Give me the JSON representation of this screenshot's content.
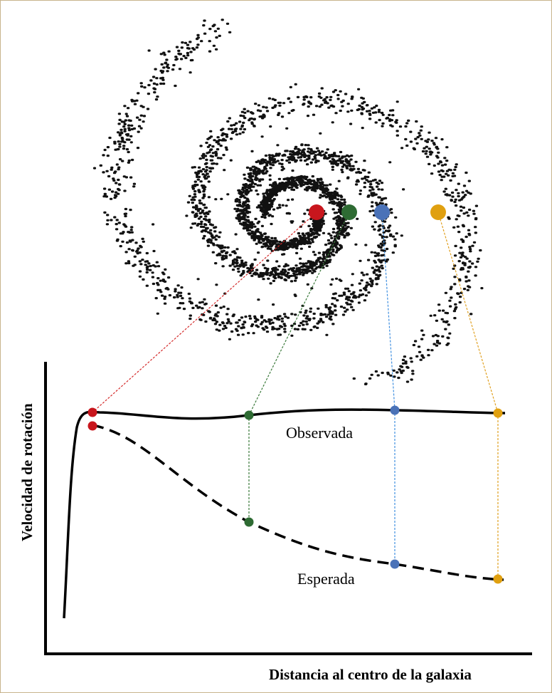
{
  "y_axis_label": "Velocidad de rotación",
  "curves": {
    "observed": "Observada",
    "expected": "Esperada"
  },
  "x_axis_label": "Distancia al centro de la galaxia"
}
